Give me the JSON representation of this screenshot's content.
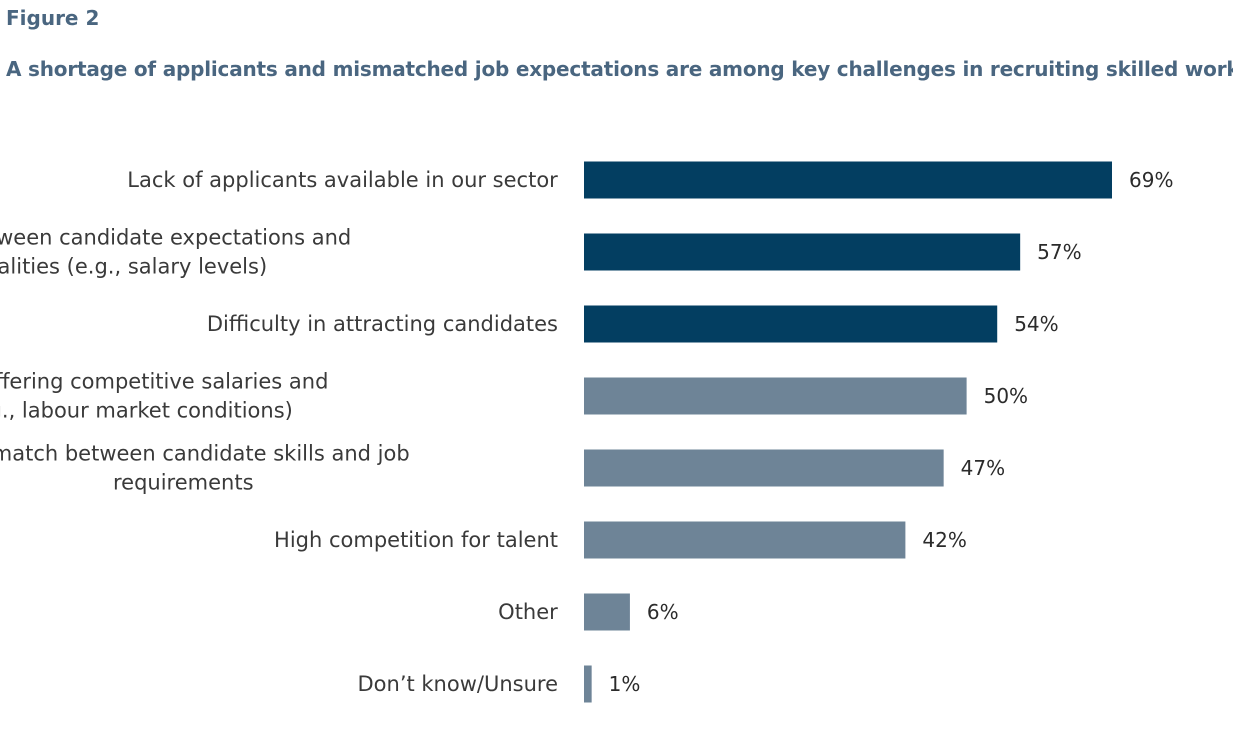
{
  "figure_label": "Figure 2",
  "title": "A shortage of applicants and mismatched job expectations are among key challenges in recruiting skilled workers",
  "colors": {
    "dark": "#033e61",
    "light": "#6e8497",
    "title": "#4a6680"
  },
  "chart_data": {
    "type": "bar",
    "orientation": "horizontal",
    "title": "A shortage of applicants and mismatched job expectations are among key challenges in recruiting skilled workers",
    "categories": [
      [
        "Lack of applicants available in our sector"
      ],
      [
        "Mismatch between candidate expectations and",
        "job realities (e.g., salary levels)"
      ],
      [
        "Difficulty in attracting candidates"
      ],
      [
        "Challenges in offering competitive salaries and",
        "benefits (e.g., labour market conditions)"
      ],
      [
        "Mismatch between candidate skills and job",
        "requirements"
      ],
      [
        "High competition for talent"
      ],
      [
        "Other"
      ],
      [
        "Don’t know/Unsure"
      ]
    ],
    "values": [
      69,
      57,
      54,
      50,
      47,
      42,
      6,
      1
    ],
    "value_labels": [
      "69%",
      "57%",
      "54%",
      "50%",
      "47%",
      "42%",
      "6%",
      "1%"
    ],
    "highlight": [
      true,
      true,
      true,
      false,
      false,
      false,
      false,
      false
    ],
    "xlim": [
      0,
      100
    ],
    "grid": false,
    "legend": "none"
  }
}
